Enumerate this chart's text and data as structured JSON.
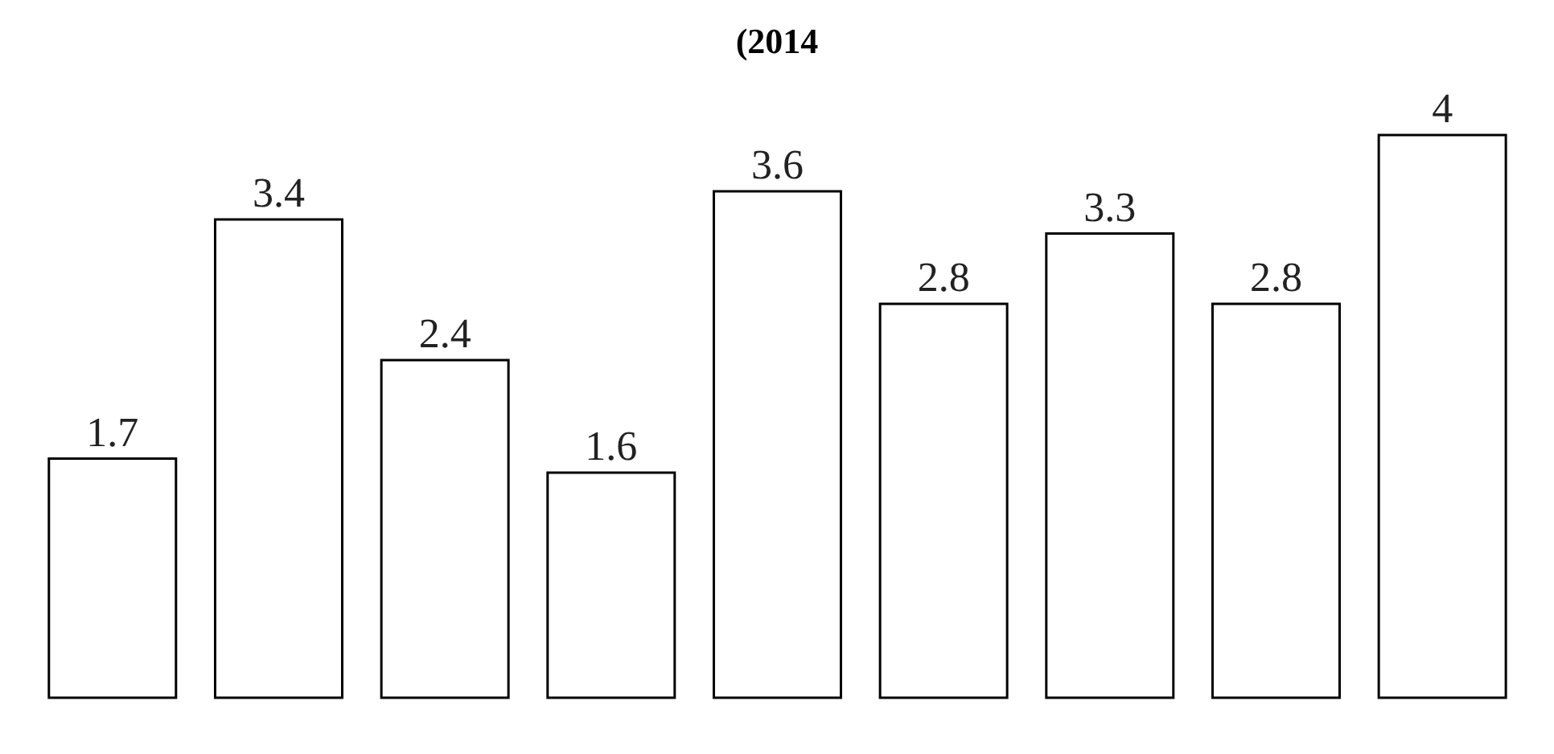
{
  "chart_data": {
    "type": "bar",
    "title": "(2014",
    "categories": [
      null,
      null,
      null,
      null,
      null,
      null,
      null,
      null,
      null
    ],
    "values": [
      1.7,
      3.4,
      2.4,
      1.6,
      3.6,
      2.8,
      3.3,
      2.8,
      4
    ],
    "color": "#ffffff",
    "data_labels": true
  }
}
